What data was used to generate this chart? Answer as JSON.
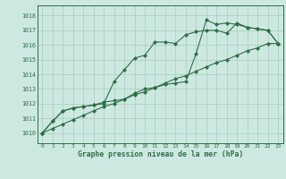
{
  "title": "Graphe pression niveau de la mer (hPa)",
  "bg_color": "#cde8e1",
  "grid_color": "#a8ccbe",
  "line_color": "#2d6e47",
  "xlim": [
    -0.5,
    23.5
  ],
  "ylim": [
    1009.3,
    1018.7
  ],
  "xticks": [
    0,
    1,
    2,
    3,
    4,
    5,
    6,
    7,
    8,
    9,
    10,
    11,
    12,
    13,
    14,
    15,
    16,
    17,
    18,
    19,
    20,
    21,
    22,
    23
  ],
  "yticks": [
    1010,
    1011,
    1012,
    1013,
    1014,
    1015,
    1016,
    1017,
    1018
  ],
  "line1_x": [
    0,
    1,
    2,
    3,
    4,
    5,
    6,
    7,
    8,
    9,
    10,
    11,
    12,
    13,
    14,
    15,
    16,
    17,
    18,
    19,
    20,
    21,
    22,
    23
  ],
  "line1_y": [
    1010.0,
    1010.8,
    1011.5,
    1011.7,
    1011.8,
    1011.9,
    1012.0,
    1013.5,
    1014.3,
    1015.1,
    1015.3,
    1016.2,
    1016.2,
    1016.1,
    1016.7,
    1016.9,
    1017.0,
    1017.0,
    1016.8,
    1017.5,
    1017.2,
    1017.1,
    1017.0,
    1016.1
  ],
  "line2_x": [
    0,
    1,
    2,
    3,
    4,
    5,
    6,
    7,
    8,
    9,
    10,
    11,
    12,
    13,
    14,
    15,
    16,
    17,
    18,
    19,
    20,
    21,
    22,
    23
  ],
  "line2_y": [
    1010.0,
    1010.8,
    1011.5,
    1011.7,
    1011.8,
    1011.9,
    1012.1,
    1012.2,
    1012.3,
    1012.7,
    1013.0,
    1013.1,
    1013.3,
    1013.4,
    1013.5,
    1015.4,
    1017.7,
    1017.4,
    1017.5,
    1017.4,
    1017.2,
    1017.1,
    1017.0,
    1016.1
  ],
  "line3_x": [
    0,
    1,
    2,
    3,
    4,
    5,
    6,
    7,
    8,
    9,
    10,
    11,
    12,
    13,
    14,
    15,
    16,
    17,
    18,
    19,
    20,
    21,
    22,
    23
  ],
  "line3_y": [
    1010.0,
    1010.3,
    1010.6,
    1010.9,
    1011.2,
    1011.5,
    1011.8,
    1012.0,
    1012.3,
    1012.6,
    1012.8,
    1013.1,
    1013.4,
    1013.7,
    1013.9,
    1014.2,
    1014.5,
    1014.8,
    1015.0,
    1015.3,
    1015.6,
    1015.8,
    1016.1,
    1016.1
  ]
}
